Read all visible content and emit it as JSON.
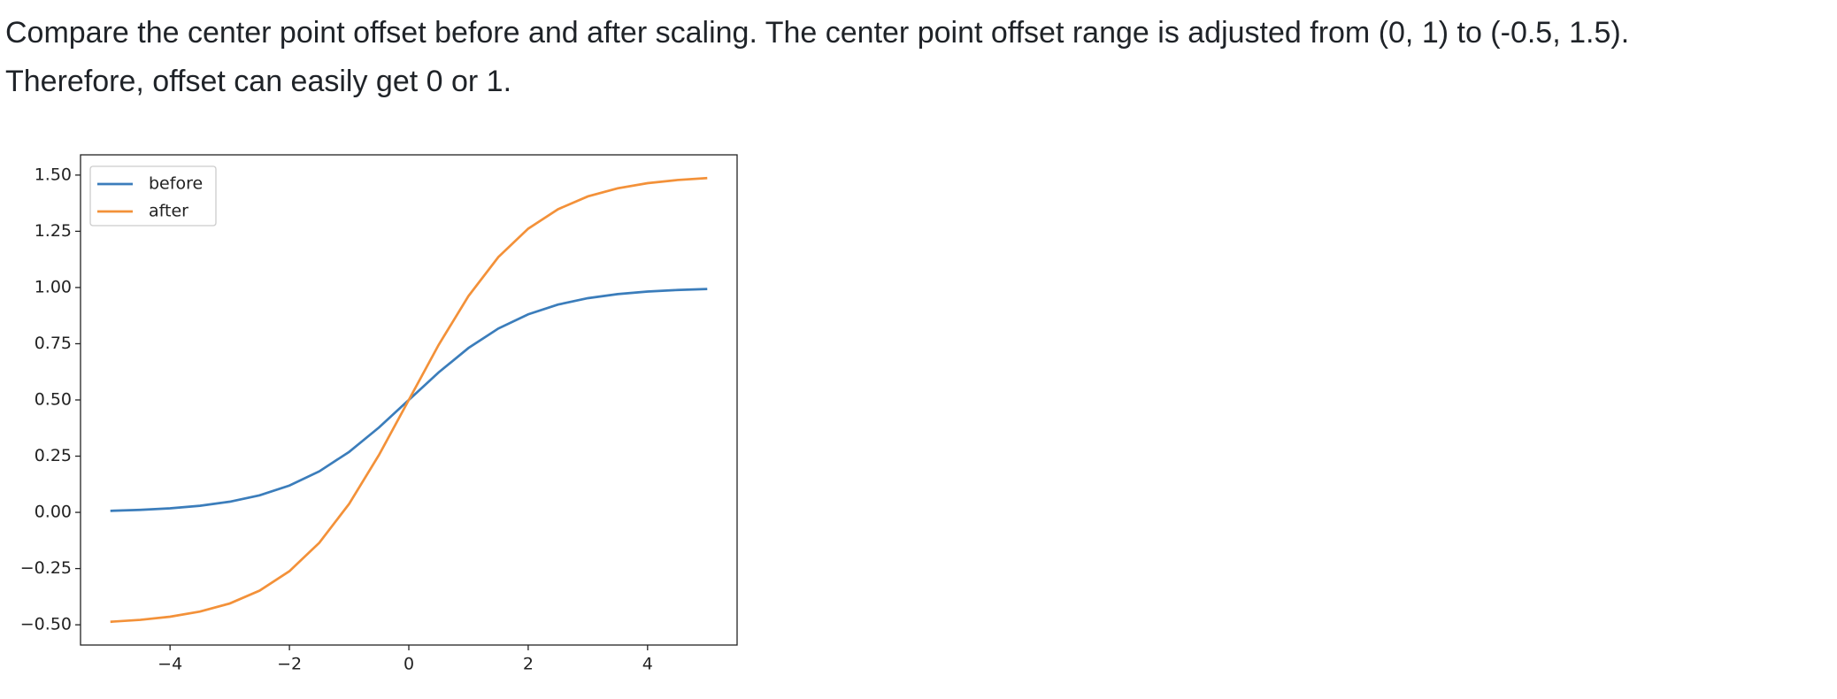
{
  "text": {
    "lines": [
      "Compare the center point offset before and after scaling. The center point offset range is adjusted from (0, 1) to (-0.5, 1.5).",
      "Therefore, offset can easily get 0 or 1."
    ]
  },
  "chart_data": {
    "type": "line",
    "x": [
      -5,
      -4.5,
      -4,
      -3.5,
      -3,
      -2.5,
      -2,
      -1.5,
      -1,
      -0.5,
      0,
      0.5,
      1,
      1.5,
      2,
      2.5,
      3,
      3.5,
      4,
      4.5,
      5
    ],
    "series": [
      {
        "name": "before",
        "color": "#3b7dbb",
        "values": [
          0.0067,
          0.011,
          0.018,
          0.0293,
          0.0474,
          0.0759,
          0.1192,
          0.1824,
          0.2689,
          0.3775,
          0.5,
          0.6225,
          0.7311,
          0.8176,
          0.8808,
          0.9241,
          0.9526,
          0.9707,
          0.982,
          0.989,
          0.9933
        ]
      },
      {
        "name": "after",
        "color": "#f39139",
        "values": [
          -0.4866,
          -0.478,
          -0.464,
          -0.4414,
          -0.4052,
          -0.3482,
          -0.2616,
          -0.1352,
          0.0378,
          0.255,
          0.5,
          0.745,
          0.9622,
          1.1352,
          1.2616,
          1.3482,
          1.4052,
          1.4414,
          1.464,
          1.478,
          1.4866
        ]
      }
    ],
    "xlim": [
      -5.5,
      5.5
    ],
    "ylim": [
      -0.59,
      1.59
    ],
    "xticks": [
      {
        "value": -4,
        "label": "−4"
      },
      {
        "value": -2,
        "label": "−2"
      },
      0,
      2,
      4
    ],
    "yticks": [
      {
        "value": -0.5,
        "label": "−0.50"
      },
      {
        "value": -0.25,
        "label": "−0.25"
      },
      {
        "value": 0,
        "label": "0.00"
      },
      {
        "value": 0.25,
        "label": "0.25"
      },
      {
        "value": 0.5,
        "label": "0.50"
      },
      {
        "value": 0.75,
        "label": "0.75"
      },
      {
        "value": 1,
        "label": "1.00"
      },
      {
        "value": 1.25,
        "label": "1.25"
      },
      {
        "value": 1.5,
        "label": "1.50"
      }
    ],
    "legend": "upper left"
  }
}
